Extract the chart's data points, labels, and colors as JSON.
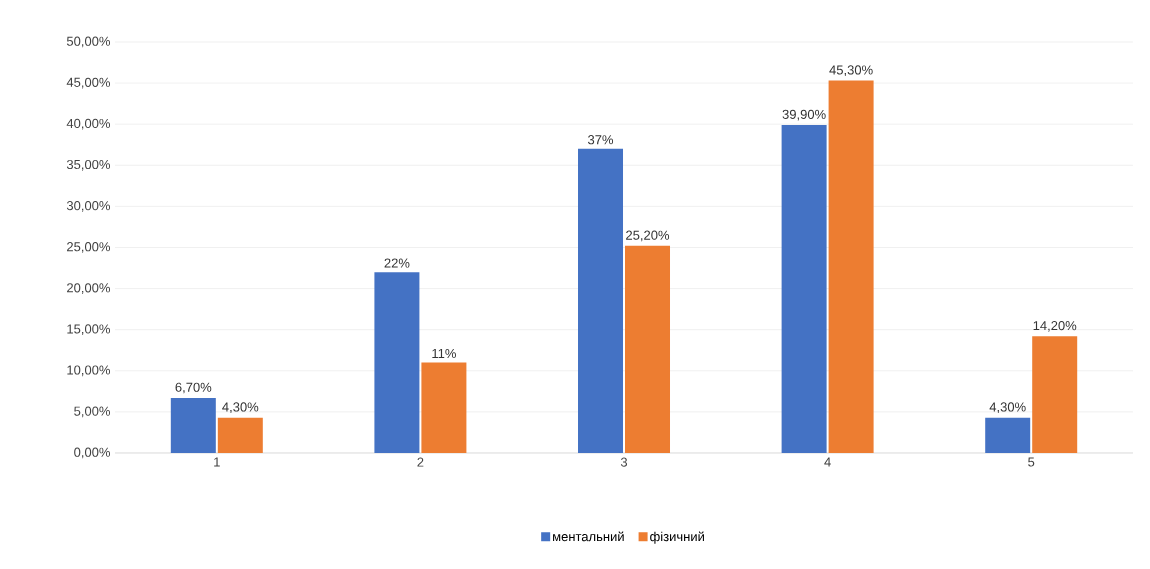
{
  "chart_data": {
    "type": "bar",
    "categories": [
      "1",
      "2",
      "3",
      "4",
      "5"
    ],
    "series": [
      {
        "name": "ментальний",
        "color": "#4472c4",
        "values": [
          6.7,
          22,
          37,
          39.9,
          4.3
        ],
        "value_labels": [
          "6,70%",
          "22%",
          "37%",
          "39,90%",
          "4,30%"
        ]
      },
      {
        "name": "фізичний",
        "color": "#ed7d31",
        "values": [
          4.3,
          11,
          25.2,
          45.3,
          14.2
        ],
        "value_labels": [
          "4,30%",
          "11%",
          "25,20%",
          "45,30%",
          "14,20%"
        ]
      }
    ],
    "ylim": [
      0,
      50
    ],
    "yticks": [
      {
        "value": 0,
        "label": "0,00%"
      },
      {
        "value": 5,
        "label": "5,00%"
      },
      {
        "value": 10,
        "label": "10,00%"
      },
      {
        "value": 15,
        "label": "15,00%"
      },
      {
        "value": 20,
        "label": "20,00%"
      },
      {
        "value": 25,
        "label": "25,00%"
      },
      {
        "value": 30,
        "label": "30,00%"
      },
      {
        "value": 35,
        "label": "35,00%"
      },
      {
        "value": 40,
        "label": "40,00%"
      },
      {
        "value": 45,
        "label": "45,00%"
      },
      {
        "value": 50,
        "label": "50,00%"
      }
    ],
    "grid": "y",
    "legend": "bottom"
  }
}
